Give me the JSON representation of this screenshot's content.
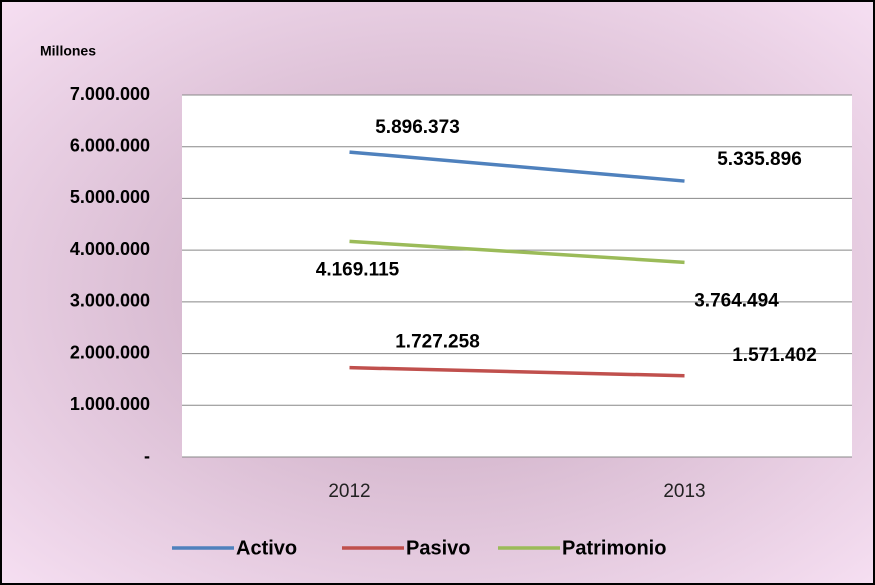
{
  "chart_data": {
    "type": "line",
    "y_label": "Millones",
    "categories": [
      "2012",
      "2013"
    ],
    "series": [
      {
        "name": "Activo",
        "color": "#4f81bd",
        "values": [
          5896373,
          5335896
        ],
        "value_labels": [
          "5.896.373",
          "5.335.896"
        ]
      },
      {
        "name": "Pasivo",
        "color": "#c0504d",
        "values": [
          1727258,
          1571402
        ],
        "value_labels": [
          "1.727.258",
          "1.571.402"
        ]
      },
      {
        "name": "Patrimonio",
        "color": "#9bbb59",
        "values": [
          4169115,
          3764494
        ],
        "value_labels": [
          "4.169.115",
          "3.764.494"
        ]
      }
    ],
    "ylim": [
      0,
      7000000
    ],
    "yticks": [
      {
        "value": 0,
        "label": "-"
      },
      {
        "value": 1000000,
        "label": "1.000.000"
      },
      {
        "value": 2000000,
        "label": "2.000.000"
      },
      {
        "value": 3000000,
        "label": "3.000.000"
      },
      {
        "value": 4000000,
        "label": "4.000.000"
      },
      {
        "value": 5000000,
        "label": "5.000.000"
      },
      {
        "value": 6000000,
        "label": "6.000.000"
      },
      {
        "value": 7000000,
        "label": "7.000.000"
      }
    ],
    "grid": true,
    "legend": "bottom"
  }
}
